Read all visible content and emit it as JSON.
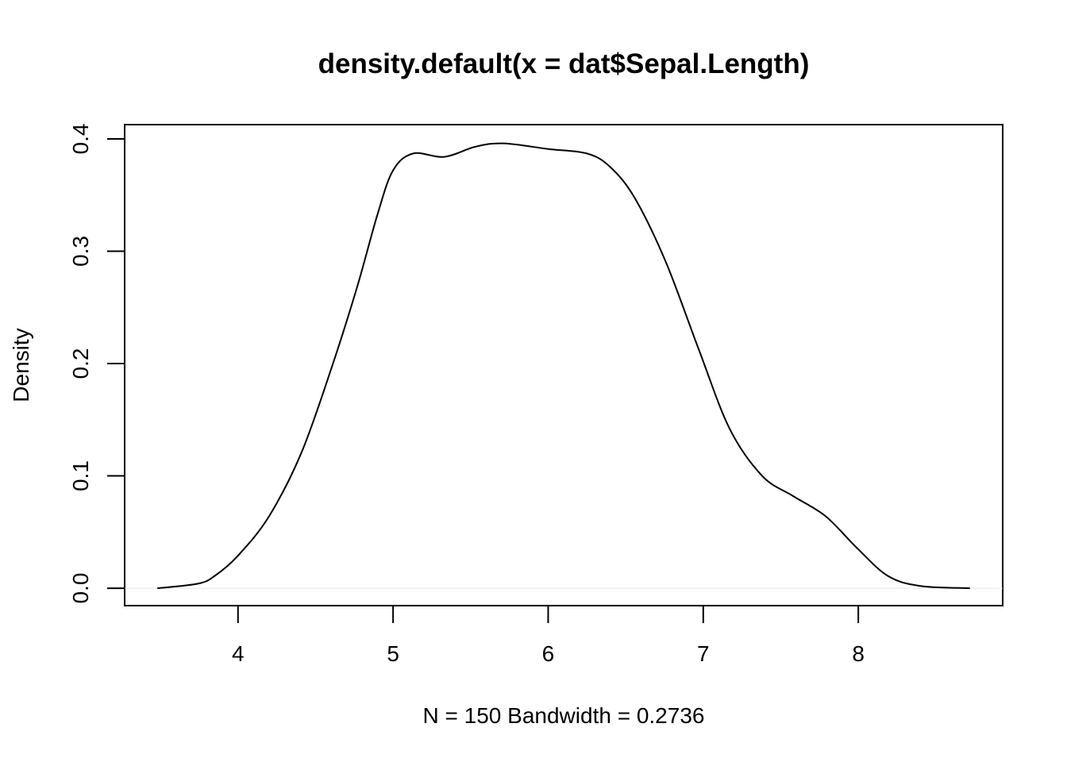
{
  "chart_data": {
    "type": "line",
    "title": "density.default(x = dat$Sepal.Length)",
    "x_label": "N = 150   Bandwidth = 0.2736",
    "y_label": "Density",
    "x": [
      3.48,
      3.74,
      3.85,
      4.0,
      4.2,
      4.41,
      4.61,
      4.77,
      4.9,
      5.0,
      5.13,
      5.33,
      5.53,
      5.71,
      6.0,
      6.25,
      6.4,
      6.56,
      6.76,
      6.97,
      7.17,
      7.38,
      7.58,
      7.79,
      7.99,
      8.19,
      8.4,
      8.72
    ],
    "values": [
      0.0,
      0.004,
      0.011,
      0.029,
      0.064,
      0.121,
      0.199,
      0.269,
      0.333,
      0.372,
      0.387,
      0.384,
      0.393,
      0.396,
      0.391,
      0.387,
      0.375,
      0.347,
      0.29,
      0.213,
      0.142,
      0.1,
      0.082,
      0.064,
      0.036,
      0.011,
      0.002,
      0.0
    ],
    "color": "#000000",
    "xlim": [
      3.269,
      8.931
    ],
    "ylim": [
      -0.0155,
      0.4127
    ],
    "xticks": [
      4,
      5,
      6,
      7,
      8
    ],
    "yticks": [
      {
        "value": 0,
        "label": "0.0"
      },
      {
        "value": 0.1,
        "label": "0.1"
      },
      {
        "value": 0.2,
        "label": "0.2"
      },
      {
        "value": 0.3,
        "label": "0.3"
      },
      {
        "value": 0.4,
        "label": "0.4"
      }
    ]
  }
}
